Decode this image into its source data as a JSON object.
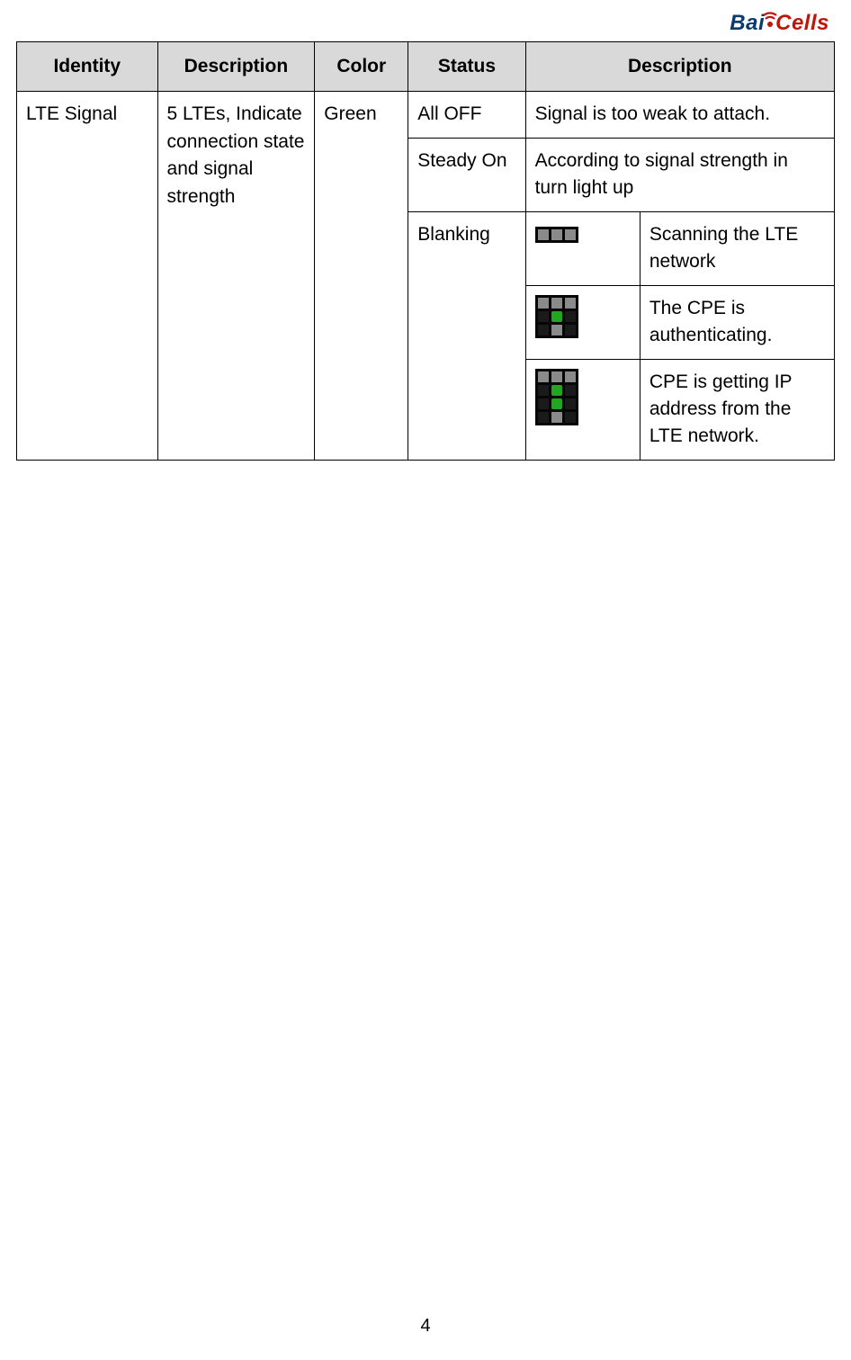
{
  "logo": {
    "part1": "Bai",
    "part2": "Cells"
  },
  "headers": {
    "identity": "Identity",
    "description1": "Description",
    "color": "Color",
    "status": "Status",
    "description2": "Description"
  },
  "row": {
    "identity": "LTE Signal",
    "description1": "5 LTEs, Indicate connection state and signal strength",
    "color": "Green",
    "status": {
      "all_off": "All OFF",
      "steady_on": "Steady On",
      "blanking": "Blanking"
    },
    "desc": {
      "all_off": "Signal is too weak to attach.",
      "steady_on": "According to signal strength in turn light up",
      "blanking1": "Scanning the LTE network",
      "blanking2": "The CPE is authenticating.",
      "blanking3": "CPE is getting IP address from the LTE network."
    }
  },
  "led_icons": {
    "scan": {
      "rows": [
        [
          "grey",
          "grey",
          "grey"
        ]
      ]
    },
    "auth": {
      "rows": [
        [
          "grey",
          "grey",
          "grey"
        ],
        [
          "dark",
          "green",
          "dark"
        ],
        [
          "dark",
          "grey",
          "dark"
        ]
      ]
    },
    "ip": {
      "rows": [
        [
          "grey",
          "grey",
          "grey"
        ],
        [
          "dark",
          "green",
          "dark"
        ],
        [
          "dark",
          "green",
          "dark"
        ],
        [
          "dark",
          "grey",
          "dark"
        ]
      ]
    }
  },
  "colors": {
    "header_bg": "#d9d9d9",
    "led_green": "#1fa81f",
    "led_grey": "#8a8a8a",
    "led_black": "#060606",
    "logo_blue": "#0a3a6e",
    "logo_red": "#c0150b"
  },
  "page_number": "4"
}
